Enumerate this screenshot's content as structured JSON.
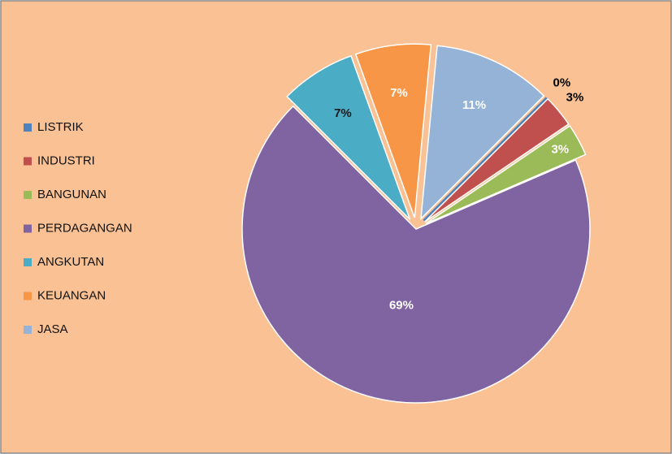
{
  "chart_data": {
    "type": "pie",
    "categories": [
      "LISTRIK",
      "INDUSTRI",
      "BANGUNAN",
      "PERDAGANGAN",
      "ANGKUTAN",
      "KEUANGAN",
      "JASA"
    ],
    "values": [
      0,
      3,
      3,
      69,
      7,
      7,
      11
    ],
    "value_labels": [
      "0%",
      "3%",
      "3%",
      "69%",
      "7%",
      "7%",
      "11%"
    ],
    "colors": [
      "#4f81bd",
      "#c0504d",
      "#9bbb59",
      "#8064a2",
      "#4bacc6",
      "#f79646",
      "#95b3d7"
    ],
    "legend": "left"
  }
}
